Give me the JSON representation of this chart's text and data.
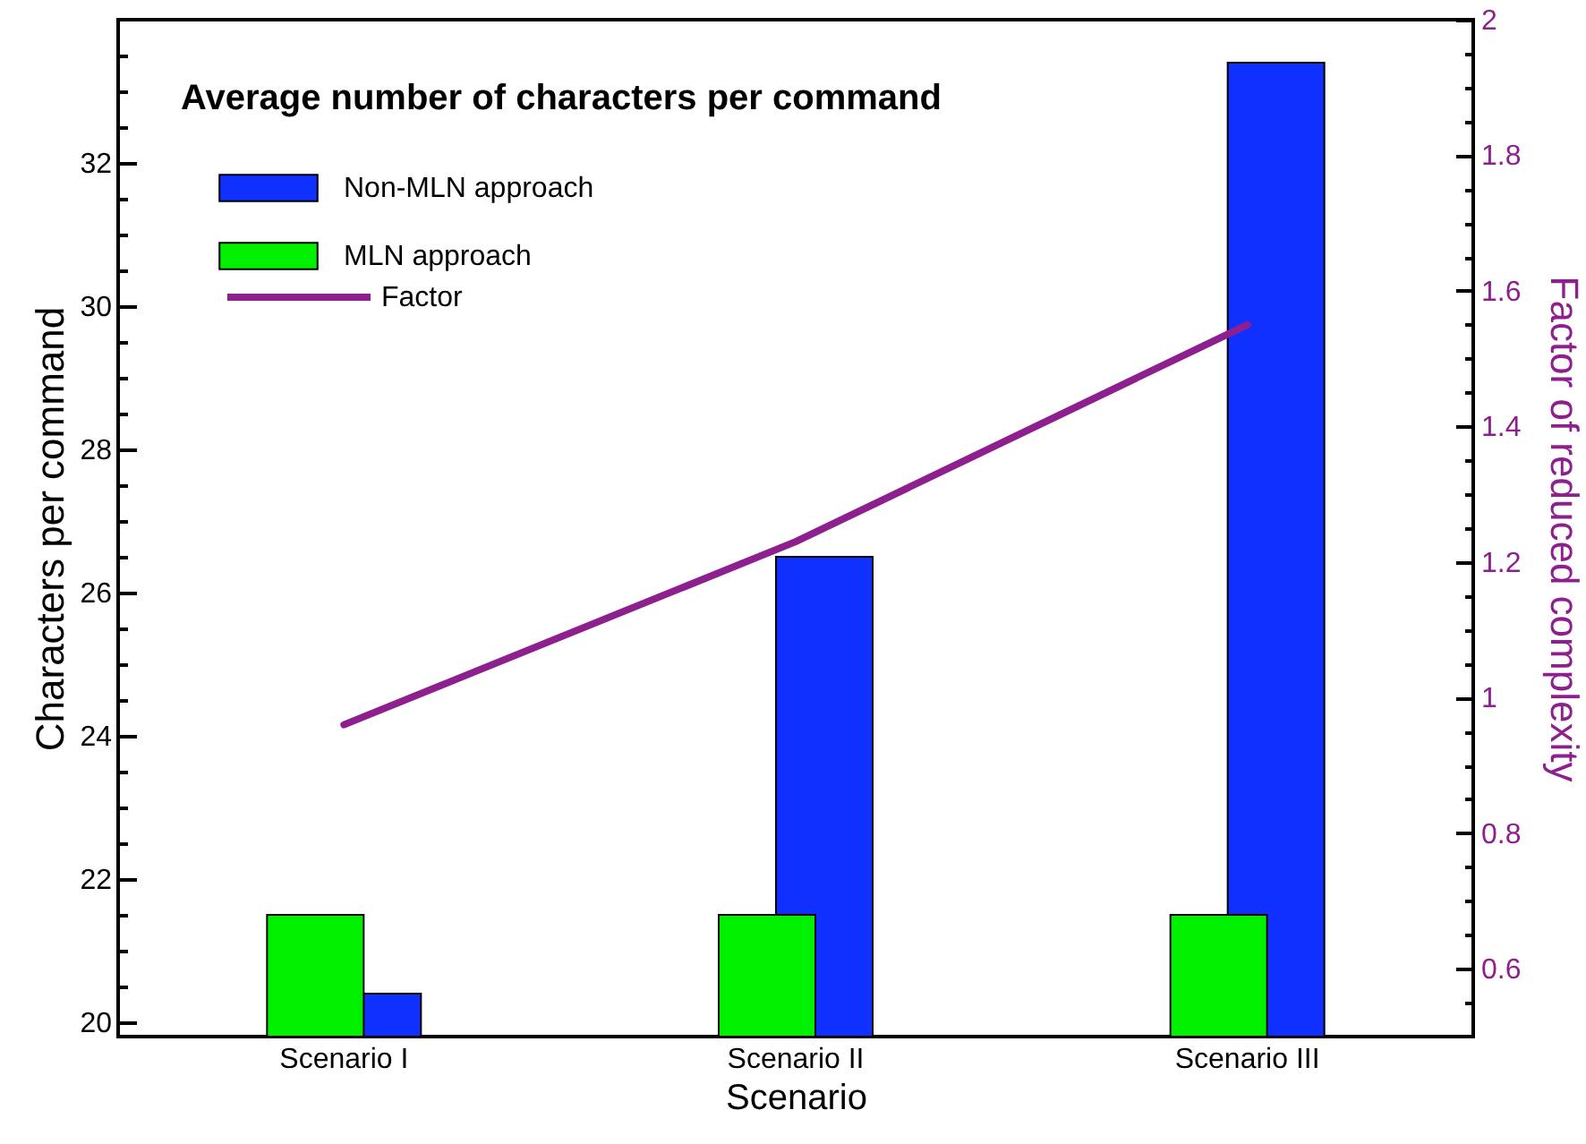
{
  "chart_data": {
    "type": "bar",
    "title": "Average number of characters per command",
    "xlabel": "Scenario",
    "ylabel": "Characters per command",
    "y2label": "Factor of reduced complexity",
    "categories": [
      "Scenario I",
      "Scenario II",
      "Scenario III"
    ],
    "series": [
      {
        "name": "Non-MLN approach",
        "color": "#1030ff",
        "values": [
          20.4,
          26.5,
          33.4
        ]
      },
      {
        "name": "MLN approach",
        "color": "#00f000",
        "values": [
          21.5,
          21.5,
          21.5
        ]
      },
      {
        "name": "Factor",
        "type": "line",
        "axis": "y2",
        "color": "#8e1f8e",
        "values": [
          0.96,
          1.23,
          1.55
        ]
      }
    ],
    "ylim": [
      19.8,
      34
    ],
    "yticks": [
      20,
      {
        "value": 20.5,
        "label": null
      },
      {
        "value": 21,
        "label": null
      },
      {
        "value": 21.5,
        "label": null
      },
      22,
      {
        "value": 22.5,
        "label": null
      },
      {
        "value": 23,
        "label": null
      },
      {
        "value": 23.5,
        "label": null
      },
      24,
      {
        "value": 24.5,
        "label": null
      },
      {
        "value": 25,
        "label": null
      },
      {
        "value": 25.5,
        "label": null
      },
      26,
      {
        "value": 26.5,
        "label": null
      },
      {
        "value": 27,
        "label": null
      },
      {
        "value": 27.5,
        "label": null
      },
      28,
      {
        "value": 28.5,
        "label": null
      },
      {
        "value": 29,
        "label": null
      },
      {
        "value": 29.5,
        "label": null
      },
      30,
      {
        "value": 30.5,
        "label": null
      },
      {
        "value": 31,
        "label": null
      },
      {
        "value": 31.5,
        "label": null
      },
      32,
      {
        "value": 32.5,
        "label": null
      },
      {
        "value": 33,
        "label": null
      },
      {
        "value": 33.5,
        "label": null
      }
    ],
    "y2lim": [
      0.5,
      2
    ],
    "y2ticks": [
      {
        "value": 0.55,
        "label": null
      },
      0.6,
      {
        "value": 0.65,
        "label": null
      },
      {
        "value": 0.7,
        "label": null
      },
      {
        "value": 0.75,
        "label": null
      },
      0.8,
      {
        "value": 0.85,
        "label": null
      },
      {
        "value": 0.9,
        "label": null
      },
      {
        "value": 0.95,
        "label": null
      },
      1,
      {
        "value": 1.05,
        "label": null
      },
      {
        "value": 1.1,
        "label": null
      },
      {
        "value": 1.15,
        "label": null
      },
      1.2,
      {
        "value": 1.25,
        "label": null
      },
      {
        "value": 1.3,
        "label": null
      },
      {
        "value": 1.35,
        "label": null
      },
      1.4,
      {
        "value": 1.45,
        "label": null
      },
      {
        "value": 1.5,
        "label": null
      },
      {
        "value": 1.55,
        "label": null
      },
      1.6,
      {
        "value": 1.65,
        "label": null
      },
      {
        "value": 1.7,
        "label": null
      },
      {
        "value": 1.75,
        "label": null
      },
      1.8,
      {
        "value": 1.85,
        "label": null
      },
      {
        "value": 1.9,
        "label": null
      },
      {
        "value": 1.95,
        "label": null
      },
      2
    ],
    "legend": "top left",
    "grid": false
  }
}
